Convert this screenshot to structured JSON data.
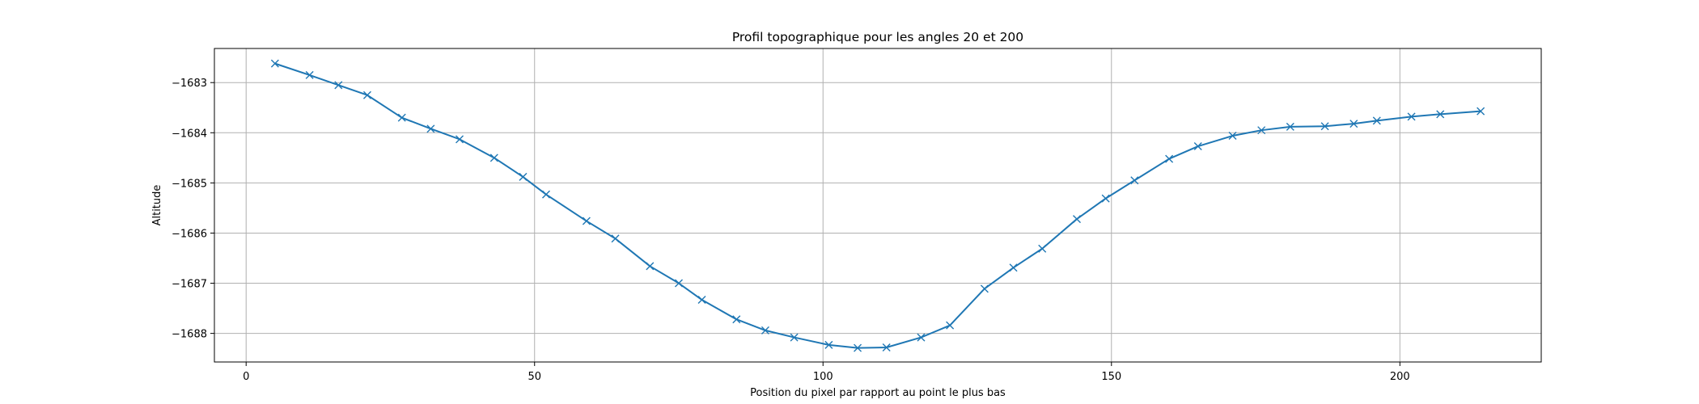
{
  "chart_data": {
    "type": "line",
    "title": "Profil topographique pour les angles 20 et 200",
    "xlabel": "Position du pixel par rapport au point le plus bas",
    "ylabel": "Altitude",
    "xlim": [
      -5.5,
      224.5
    ],
    "ylim": [
      -1688.57,
      -1682.32
    ],
    "xticks": [
      0,
      50,
      100,
      150,
      200
    ],
    "yticks": [
      -1688,
      -1687,
      -1686,
      -1685,
      -1684,
      -1683
    ],
    "grid": true,
    "series": [
      {
        "color": "#1f77b4",
        "marker": "x",
        "x": [
          5,
          11,
          16,
          21,
          27,
          32,
          37,
          43,
          48,
          52,
          59,
          64,
          70,
          75,
          79,
          85,
          90,
          95,
          101,
          106,
          111,
          117,
          122,
          128,
          133,
          138,
          144,
          149,
          154,
          160,
          165,
          171,
          176,
          181,
          187,
          192,
          196,
          202,
          207,
          214
        ],
        "y": [
          -1682.62,
          -1682.85,
          -1683.05,
          -1683.25,
          -1683.7,
          -1683.92,
          -1684.13,
          -1684.5,
          -1684.88,
          -1685.23,
          -1685.76,
          -1686.11,
          -1686.66,
          -1687.0,
          -1687.33,
          -1687.72,
          -1687.94,
          -1688.08,
          -1688.23,
          -1688.29,
          -1688.28,
          -1688.08,
          -1687.84,
          -1687.11,
          -1686.69,
          -1686.31,
          -1685.72,
          -1685.31,
          -1684.95,
          -1684.52,
          -1684.27,
          -1684.06,
          -1683.95,
          -1683.88,
          -1683.87,
          -1683.82,
          -1683.76,
          -1683.68,
          -1683.63,
          -1683.57
        ]
      }
    ]
  }
}
